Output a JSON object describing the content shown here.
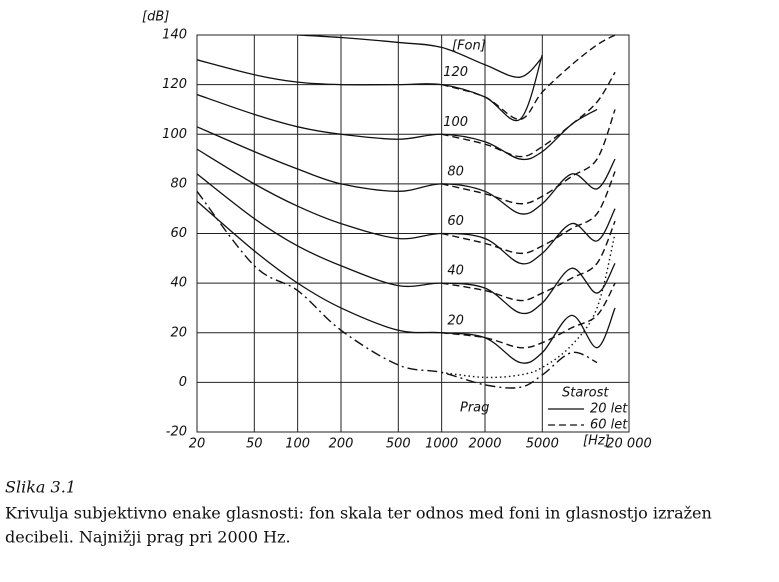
{
  "chart_data": {
    "type": "line",
    "ylabel": "[dB]",
    "x": [
      20,
      50,
      100,
      200,
      500,
      1000,
      2000,
      3500,
      5000,
      8000,
      12000,
      16000
    ],
    "xscale": "log",
    "xlim": [
      20,
      20000
    ],
    "xticks": [
      20,
      50,
      100,
      200,
      500,
      1000,
      2000,
      5000,
      {
        "value": 20000,
        "label": "20 000"
      }
    ],
    "ylim": [
      -20,
      140
    ],
    "yticks": [
      140,
      120,
      100,
      80,
      60,
      40,
      20,
      0,
      -20
    ],
    "grid": true,
    "color": "#111111",
    "series": [
      {
        "values": [
          null,
          null,
          140,
          139,
          137,
          135,
          128,
          123,
          131,
          null,
          null,
          null
        ],
        "style": "solid"
      },
      {
        "name": "120",
        "values": [
          130,
          124,
          121,
          120,
          120,
          120,
          115,
          106,
          132,
          null,
          null,
          null
        ],
        "style": "solid"
      },
      {
        "name": "100",
        "values": [
          116,
          108,
          103,
          100,
          98,
          100,
          97,
          90,
          93,
          104,
          110,
          null
        ],
        "style": "solid"
      },
      {
        "name": "80",
        "values": [
          103,
          93,
          86,
          80,
          77,
          80,
          77,
          68,
          72,
          84,
          78,
          90
        ],
        "style": "solid"
      },
      {
        "name": "60",
        "values": [
          94,
          80,
          71,
          64,
          58,
          60,
          58,
          48,
          52,
          64,
          57,
          70
        ],
        "style": "solid"
      },
      {
        "name": "40",
        "values": [
          84,
          66,
          55,
          47,
          39,
          40,
          38,
          28,
          32,
          46,
          36,
          48
        ],
        "style": "solid"
      },
      {
        "name": "20",
        "values": [
          73,
          53,
          40,
          30,
          21,
          20,
          18,
          8,
          12,
          27,
          14,
          30
        ],
        "style": "solid"
      },
      {
        "values": [
          77,
          47,
          37,
          21,
          7,
          4,
          -1,
          -2,
          3,
          12,
          8,
          null
        ],
        "style": "dashdot"
      },
      {
        "values": [
          null,
          null,
          null,
          null,
          null,
          120,
          115,
          106,
          117,
          128,
          136,
          140
        ],
        "style": "dashed"
      },
      {
        "values": [
          null,
          null,
          null,
          null,
          null,
          100,
          96,
          91,
          95,
          104,
          113,
          125
        ],
        "style": "dashed"
      },
      {
        "values": [
          null,
          null,
          null,
          null,
          null,
          80,
          76,
          72,
          75,
          83,
          90,
          110
        ],
        "style": "dashed"
      },
      {
        "values": [
          null,
          null,
          null,
          null,
          null,
          60,
          56,
          52,
          55,
          62,
          68,
          85
        ],
        "style": "dashed"
      },
      {
        "values": [
          null,
          null,
          null,
          null,
          null,
          40,
          37,
          33,
          36,
          42,
          48,
          65
        ],
        "style": "dashed"
      },
      {
        "values": [
          null,
          null,
          null,
          null,
          null,
          20,
          18,
          14,
          16,
          22,
          27,
          40
        ],
        "style": "dashed"
      },
      {
        "values": [
          null,
          null,
          null,
          null,
          null,
          4,
          2,
          3,
          6,
          15,
          30,
          60
        ],
        "style": "dotted"
      }
    ],
    "annotations": {
      "fon": "[Fon]",
      "prag": "Prag",
      "hz": "[Hz]"
    },
    "legend": {
      "title": "Starost",
      "entries": [
        {
          "label": "20 let",
          "style": "solid"
        },
        {
          "label": "60 let",
          "style": "dashed"
        }
      ]
    }
  },
  "caption": {
    "label": "Slika 3.1",
    "lines": [
      "Krivulja subjektivno enake glasnosti: fon skala ter odnos med foni in glasnostjo izražen",
      "decibeli. Najnižji prag pri 2000 Hz."
    ]
  }
}
